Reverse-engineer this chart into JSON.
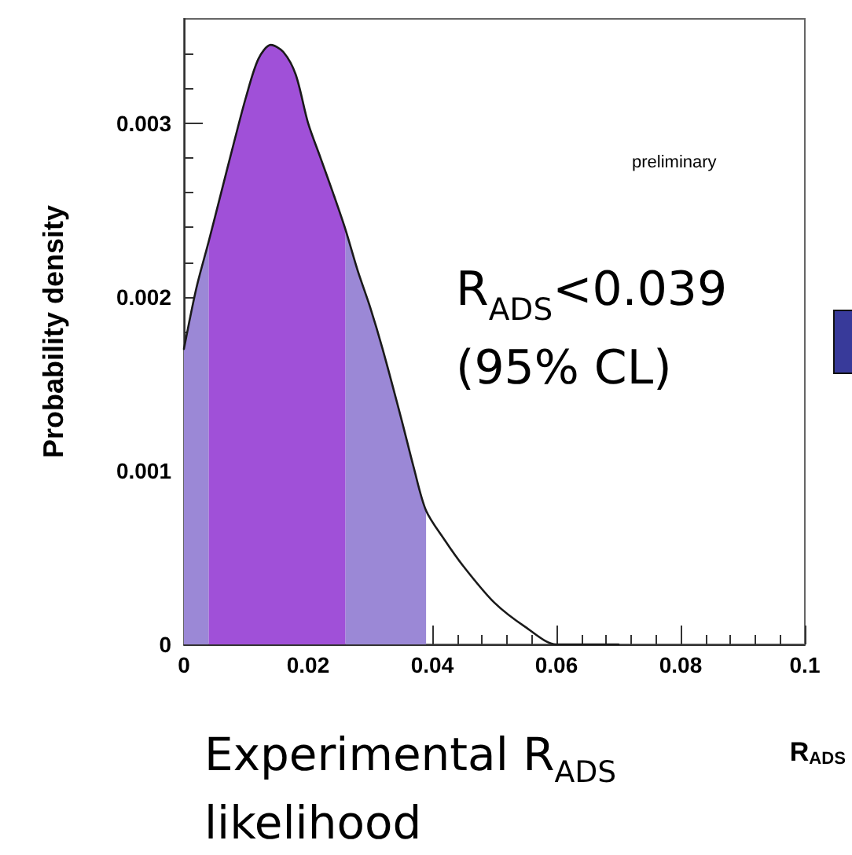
{
  "chart_data": {
    "type": "line",
    "ylabel": "Probability density",
    "xlabel": "R$_{ADS}$",
    "x": [
      0,
      0.002,
      0.004,
      0.006,
      0.008,
      0.01,
      0.012,
      0.014,
      0.016,
      0.018,
      0.02,
      0.022,
      0.024,
      0.026,
      0.028,
      0.03,
      0.032,
      0.035,
      0.037,
      0.039,
      0.042,
      0.045,
      0.05,
      0.055,
      0.06,
      0.065,
      0.07
    ],
    "series": [
      {
        "color": "#1a1a1a",
        "values": [
          0.0017,
          0.00205,
          0.00232,
          0.0026,
          0.00288,
          0.00315,
          0.00337,
          0.00345,
          0.00341,
          0.00328,
          0.003,
          0.0028,
          0.0026,
          0.00239,
          0.00215,
          0.00194,
          0.0017,
          0.0013,
          0.00102,
          0.00077,
          0.0006,
          0.00045,
          0.00024,
          0.0001,
          0,
          0,
          0
        ]
      },
      {
        "type": "area",
        "color": "#9b88d6",
        "x": [
          0,
          0.002,
          0.004
        ],
        "values": [
          0.0017,
          0.00205,
          0.00232
        ]
      },
      {
        "type": "area",
        "color": "#9b88d6",
        "x": [
          0.026,
          0.028,
          0.03,
          0.032,
          0.035,
          0.037,
          0.039
        ],
        "values": [
          0.00239,
          0.00215,
          0.00194,
          0.0017,
          0.0013,
          0.00102,
          0.00077
        ]
      },
      {
        "type": "area",
        "color": "#a050d8",
        "x": [
          0.004,
          0.006,
          0.008,
          0.01,
          0.012,
          0.014,
          0.016,
          0.018,
          0.02,
          0.022,
          0.024,
          0.026
        ],
        "values": [
          0.00232,
          0.0026,
          0.00288,
          0.00315,
          0.00337,
          0.00345,
          0.00341,
          0.00328,
          0.003,
          0.0028,
          0.0026,
          0.00239
        ]
      }
    ],
    "xlim": [
      0,
      0.1
    ],
    "xticks": [
      0,
      0.02,
      0.04,
      0.06,
      0.08,
      0.1
    ],
    "ylim": [
      0,
      0.0036
    ],
    "yticks": [
      0,
      0.001,
      0.002,
      0.003
    ],
    "grid": false,
    "marker": "none",
    "line_style": "solid",
    "annotations": [
      "preliminary",
      "R$_{ADS}$<0.039",
      "(95% CL)",
      "Experimental R$_{ADS}$ likelihood"
    ]
  }
}
